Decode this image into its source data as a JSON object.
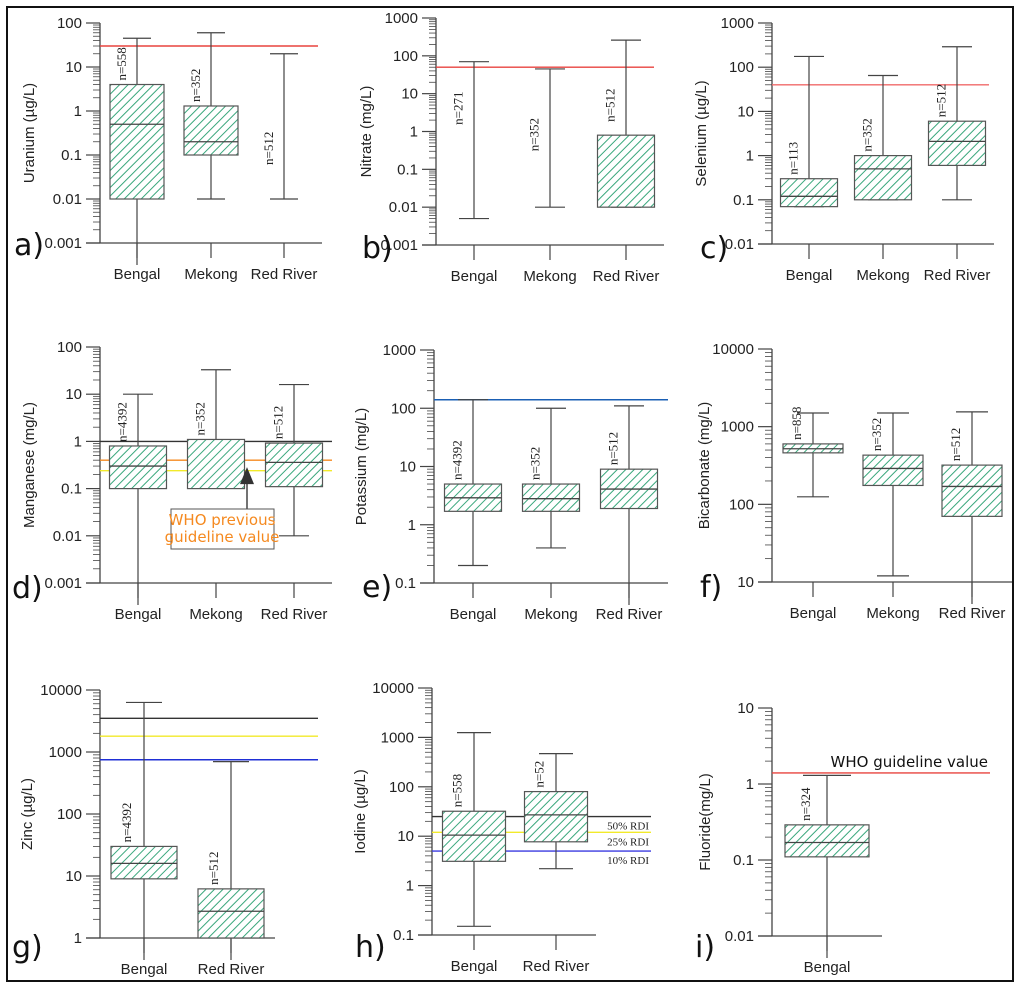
{
  "chart_data": [
    {
      "id": "a",
      "type": "box",
      "panel_label": "a)",
      "ylabel": "Uranium (µg/L)",
      "yscale": "log",
      "ylim": [
        0.001,
        100
      ],
      "ticks": [
        "0.001",
        "0.01",
        "0.1",
        "1",
        "10",
        "100"
      ],
      "categories": [
        "Bengal",
        "Mekong",
        "Red River"
      ],
      "boxes": [
        {
          "n": "n=558",
          "min": 0.0001,
          "q1": 0.01,
          "median": 0.5,
          "q3": 4,
          "max": 45
        },
        {
          "n": "n=352",
          "min": 0.01,
          "q1": 0.1,
          "median": 0.2,
          "q3": 1.3,
          "max": 60
        },
        {
          "n": "n=512",
          "min": 0.01,
          "q1": null,
          "median": null,
          "q3": null,
          "max": 20
        }
      ],
      "reference_lines": [
        {
          "value": 30,
          "color": "#e8433f",
          "label": ""
        }
      ]
    },
    {
      "id": "b",
      "type": "box",
      "panel_label": "b)",
      "ylabel": "Nitrate (mg/L)",
      "yscale": "log",
      "ylim": [
        0.001,
        1000
      ],
      "ticks": [
        "0.001",
        "0.01",
        "0.1",
        "1",
        "10",
        "100",
        "1000"
      ],
      "categories": [
        "Bengal",
        "Mekong",
        "Red River"
      ],
      "boxes": [
        {
          "n": "n=271",
          "min": 0.005,
          "q1": null,
          "median": null,
          "q3": null,
          "max": 70
        },
        {
          "n": "n=352",
          "min": 0.01,
          "q1": null,
          "median": null,
          "q3": null,
          "max": 45
        },
        {
          "n": "n=512",
          "min": 0.01,
          "q1": 0.01,
          "median": null,
          "q3": 0.8,
          "max": 260
        }
      ],
      "reference_lines": [
        {
          "value": 50,
          "color": "#e8433f",
          "label": ""
        }
      ]
    },
    {
      "id": "c",
      "type": "box",
      "panel_label": "c)",
      "ylabel": "Selenium (µg/L)",
      "yscale": "log",
      "ylim": [
        0.01,
        1000
      ],
      "ticks": [
        "0.01",
        "0.1",
        "1",
        "10",
        "100",
        "1000"
      ],
      "categories": [
        "Bengal",
        "Mekong",
        "Red River"
      ],
      "boxes": [
        {
          "n": "n=113",
          "min": 0.07,
          "q1": 0.07,
          "median": 0.12,
          "q3": 0.3,
          "max": 175
        },
        {
          "n": "n=352",
          "min": 0.1,
          "q1": 0.1,
          "median": 0.5,
          "q3": 1.0,
          "max": 65
        },
        {
          "n": "n=512",
          "min": 0.1,
          "q1": 0.6,
          "median": 2.1,
          "q3": 6,
          "max": 290
        }
      ],
      "reference_lines": [
        {
          "value": 40,
          "color": "#f06a6a",
          "label": ""
        }
      ]
    },
    {
      "id": "d",
      "type": "box",
      "panel_label": "d)",
      "ylabel": "Manganese (mg/L)",
      "yscale": "log",
      "ylim": [
        0.001,
        100
      ],
      "ticks": [
        "0.001",
        "0.01",
        "0.1",
        "1",
        "10",
        "100"
      ],
      "categories": [
        "Bengal",
        "Mekong",
        "Red River"
      ],
      "boxes": [
        {
          "n": "n=4392",
          "min": 0.0001,
          "q1": 0.1,
          "median": 0.3,
          "q3": 0.8,
          "max": 10
        },
        {
          "n": "n=352",
          "min": null,
          "q1": 0.1,
          "median": null,
          "q3": 1.1,
          "max": 33
        },
        {
          "n": "n=512",
          "min": 0.01,
          "q1": 0.11,
          "median": 0.36,
          "q3": 0.92,
          "max": 16
        }
      ],
      "reference_lines": [
        {
          "value": 1.0,
          "color": "#333333",
          "label": ""
        },
        {
          "value": 0.4,
          "color": "#f5891f",
          "label": ""
        },
        {
          "value": 0.24,
          "color": "#f2ea2a",
          "label": ""
        }
      ],
      "annotation": {
        "text_line1": "WHO previous",
        "text_line2": "guideline value",
        "color": "#f5891f",
        "points_to": 0.4
      }
    },
    {
      "id": "e",
      "type": "box",
      "panel_label": "e)",
      "ylabel": "Potassium (mg/L)",
      "yscale": "log",
      "ylim": [
        0.1,
        1000
      ],
      "ticks": [
        "0.1",
        "1",
        "10",
        "100",
        "1000"
      ],
      "categories": [
        "Bengal",
        "Mekong",
        "Red River"
      ],
      "boxes": [
        {
          "n": "n=4392",
          "min": 0.2,
          "q1": 1.7,
          "median": 2.9,
          "q3": 5,
          "max": 140
        },
        {
          "n": "n=352",
          "min": 0.4,
          "q1": 1.7,
          "median": 2.8,
          "q3": 5,
          "max": 100
        },
        {
          "n": "n=512",
          "min": 0.01,
          "q1": 1.9,
          "median": 4.1,
          "q3": 9,
          "max": 110
        }
      ],
      "reference_lines": [
        {
          "value": 140,
          "color": "#1a5fb4",
          "label": ""
        }
      ]
    },
    {
      "id": "f",
      "type": "box",
      "panel_label": "f)",
      "ylabel": "Bicarbonate (mg/L)",
      "yscale": "log",
      "ylim": [
        10,
        10000
      ],
      "ticks": [
        "10",
        "100",
        "1000",
        "10000"
      ],
      "categories": [
        "Bengal",
        "Mekong",
        "Red River"
      ],
      "boxes": [
        {
          "n": "n=858",
          "min": 125,
          "q1": 460,
          "median": 520,
          "q3": 600,
          "max": 1500
        },
        {
          "n": "n=352",
          "min": 12,
          "q1": 175,
          "median": 290,
          "q3": 430,
          "max": 1500
        },
        {
          "n": "n=512",
          "min": 1,
          "q1": 70,
          "median": 170,
          "q3": 320,
          "max": 1550
        }
      ],
      "reference_lines": []
    },
    {
      "id": "g",
      "type": "box",
      "panel_label": "g)",
      "ylabel": "Zinc (µg/L)",
      "yscale": "log",
      "ylim": [
        1,
        10000
      ],
      "ticks": [
        "1",
        "10",
        "100",
        "1000",
        "10000"
      ],
      "categories": [
        "Bengal",
        "Red River"
      ],
      "boxes": [
        {
          "n": "n=4392",
          "min": 0.5,
          "q1": 9,
          "median": 16,
          "q3": 30,
          "max": 6300
        },
        {
          "n": "n=512",
          "min": 0.5,
          "q1": 1,
          "median": 2.7,
          "q3": 6.2,
          "max": 700
        }
      ],
      "reference_lines": [
        {
          "value": 3500,
          "color": "#333333",
          "label": ""
        },
        {
          "value": 1800,
          "color": "#f2ea2a",
          "label": ""
        },
        {
          "value": 750,
          "color": "#1f2fd6",
          "label": ""
        }
      ]
    },
    {
      "id": "h",
      "type": "box",
      "panel_label": "h)",
      "ylabel": "Iodine (µg/L)",
      "yscale": "log",
      "ylim": [
        0.1,
        10000
      ],
      "ticks": [
        "0.1",
        "1",
        "10",
        "100",
        "1000",
        "10000"
      ],
      "categories": [
        "Bengal",
        "Red River"
      ],
      "boxes": [
        {
          "n": "n=558",
          "min": 0.15,
          "q1": 3.1,
          "median": 10.5,
          "q3": 32,
          "max": 1250
        },
        {
          "n": "n=52",
          "min": 2.2,
          "q1": 7.7,
          "median": 27,
          "q3": 80,
          "max": 470
        }
      ],
      "reference_lines": [
        {
          "value": 25,
          "color": "#333333",
          "label": "50% RDI"
        },
        {
          "value": 12,
          "color": "#f2ea2a",
          "label": "25% RDI"
        },
        {
          "value": 5,
          "color": "#3a3ae0",
          "label": "10% RDI"
        }
      ]
    },
    {
      "id": "i",
      "type": "box",
      "panel_label": "i)",
      "ylabel": "Fluoride(mg/L)",
      "yscale": "log",
      "ylim": [
        0.01,
        10
      ],
      "ticks": [
        "0.01",
        "0.1",
        "1",
        "10"
      ],
      "categories": [
        "Bengal"
      ],
      "boxes": [
        {
          "n": "n=324",
          "min": 0.005,
          "q1": 0.11,
          "median": 0.17,
          "q3": 0.29,
          "max": 1.3
        }
      ],
      "reference_lines": [
        {
          "value": 1.4,
          "color": "#e8433f",
          "label": "WHO guideline value"
        }
      ]
    }
  ],
  "style": {
    "box_hatch_color": "#3aa77c",
    "axis_color": "#444444"
  }
}
